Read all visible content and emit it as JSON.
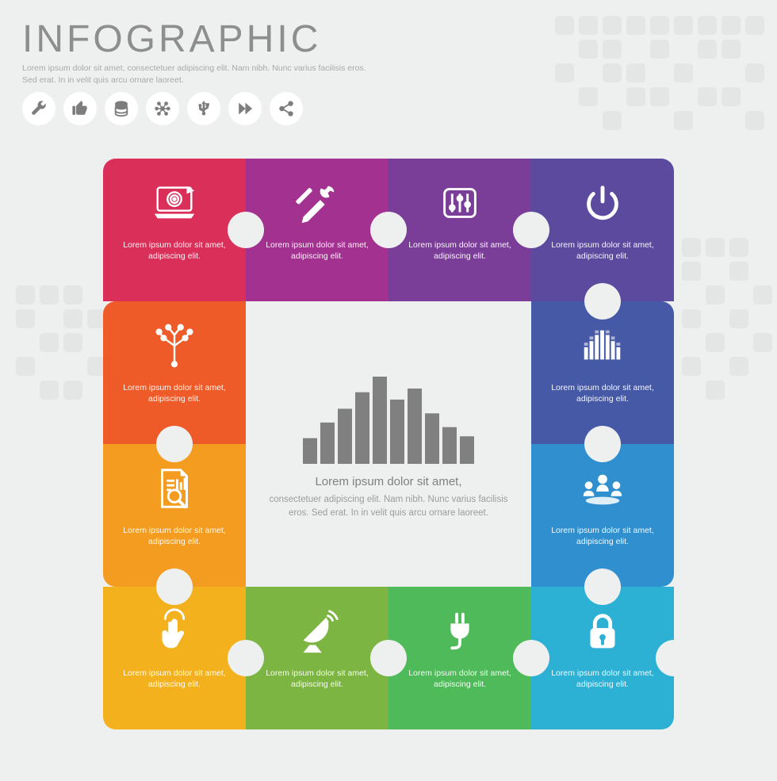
{
  "background_color": "#eeefef",
  "grid_square_color": "#e4e5e5",
  "header": {
    "title": "INFOGRAPHIC",
    "title_color": "#8e8e8e",
    "title_fontsize": 48,
    "subtitle": "Lorem ipsum dolor sit amet, consectetuer adipiscing elit.\nNam nibh. Nunc varius facilisis eros. Sed erat. In in velit quis arcu ornare laoreet.",
    "subtitle_color": "#a9a9a9"
  },
  "header_icons": [
    {
      "name": "wrench-icon",
      "bg": "#ffffff",
      "fg": "#7d7d7d"
    },
    {
      "name": "thumbs-up-icon",
      "bg": "#ffffff",
      "fg": "#7d7d7d"
    },
    {
      "name": "database-icon",
      "bg": "#ffffff",
      "fg": "#7d7d7d"
    },
    {
      "name": "network-icon",
      "bg": "#ffffff",
      "fg": "#7d7d7d"
    },
    {
      "name": "usb-icon",
      "bg": "#ffffff",
      "fg": "#7d7d7d"
    },
    {
      "name": "fast-forward-icon",
      "bg": "#ffffff",
      "fg": "#7d7d7d"
    },
    {
      "name": "share-icon",
      "bg": "#ffffff",
      "fg": "#7d7d7d"
    }
  ],
  "puzzle": {
    "piece_size": 180,
    "corner_radius": 16,
    "tab_diameter": 44,
    "piece_text": "Lorem ipsum dolor sit amet, adipiscing elit.",
    "pieces": [
      {
        "pos": "top-0",
        "color": "#d92f58",
        "icon": "laptop-target-icon"
      },
      {
        "pos": "top-1",
        "color": "#a3318f",
        "icon": "tools-icon"
      },
      {
        "pos": "top-2",
        "color": "#7a3e98",
        "icon": "equalizer-sliders-icon"
      },
      {
        "pos": "top-3",
        "color": "#5b4a9e",
        "icon": "power-icon"
      },
      {
        "pos": "right-0",
        "color": "#4659a6",
        "icon": "equalizer-bars-icon"
      },
      {
        "pos": "right-1",
        "color": "#2f8fcf",
        "icon": "people-network-icon"
      },
      {
        "pos": "bottom-3",
        "color": "#2cb0d4",
        "icon": "lock-icon"
      },
      {
        "pos": "bottom-2",
        "color": "#4fba5a",
        "icon": "plug-icon"
      },
      {
        "pos": "bottom-1",
        "color": "#7cb542",
        "icon": "satellite-dish-icon"
      },
      {
        "pos": "bottom-0",
        "color": "#f4b11e",
        "icon": "touch-pointer-icon"
      },
      {
        "pos": "left-1",
        "color": "#f39c1f",
        "icon": "document-search-icon"
      },
      {
        "pos": "left-0",
        "color": "#ef5a29",
        "icon": "circuit-tree-icon"
      }
    ]
  },
  "center": {
    "bar_color": "#808080",
    "bar_values": [
      28,
      45,
      60,
      78,
      95,
      70,
      82,
      55,
      40,
      30
    ],
    "title": "Lorem ipsum dolor sit amet,",
    "title_color": "#808080",
    "body": "consectetuer adipiscing elit. Nam nibh. Nunc varius facilisis eros. Sed erat. In in velit quis arcu ornare laoreet.",
    "body_color": "#9c9c9c"
  }
}
